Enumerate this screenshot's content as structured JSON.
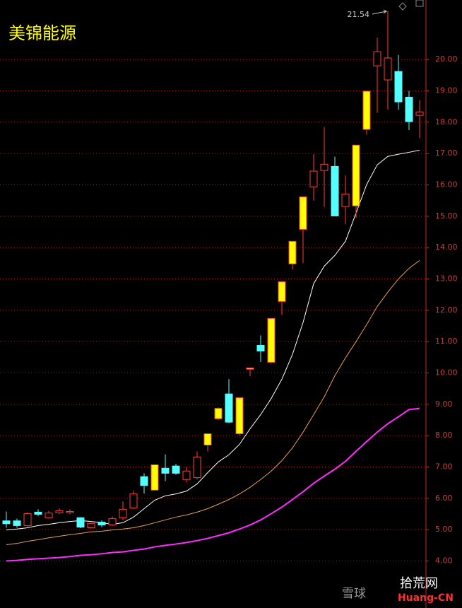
{
  "chart_data": {
    "type": "candlestick",
    "title": "美锦能源",
    "open": [
      5.28,
      5.28,
      5.13,
      5.56,
      5.38,
      5.54,
      5.54,
      5.38,
      5.06,
      5.24,
      5.15,
      5.38,
      5.69,
      6.69,
      6.26,
      6.96,
      7.03,
      6.6,
      6.66,
      7.7,
      8.54,
      9.33,
      8.06,
      10.12,
      10.88,
      10.34,
      12.28,
      13.48,
      14.58,
      15.94,
      16.46,
      16.59,
      15.31,
      15.33,
      17.77,
      19.8,
      19.35,
      19.62,
      18.8,
      18.22
    ],
    "high": [
      5.58,
      5.35,
      5.55,
      5.65,
      5.6,
      5.68,
      5.65,
      5.4,
      5.22,
      5.3,
      5.42,
      5.9,
      6.25,
      6.8,
      7.07,
      7.4,
      7.1,
      7.0,
      7.5,
      8.06,
      8.9,
      9.8,
      9.21,
      10.17,
      11.2,
      11.74,
      12.91,
      14.2,
      15.62,
      16.98,
      17.85,
      16.9,
      16.3,
      17.27,
      18.99,
      20.7,
      21.54,
      20.15,
      19.0,
      18.7
    ],
    "low": [
      5.06,
      5.06,
      5.1,
      5.43,
      5.35,
      5.5,
      5.5,
      5.05,
      5.03,
      5.08,
      5.12,
      5.3,
      5.65,
      6.15,
      6.26,
      6.55,
      6.75,
      6.5,
      6.6,
      7.5,
      8.5,
      8.4,
      8.0,
      9.9,
      10.35,
      10.3,
      11.85,
      13.3,
      13.5,
      15.5,
      15.3,
      15.0,
      14.75,
      14.95,
      17.6,
      18.3,
      18.4,
      18.4,
      17.75,
      17.5
    ],
    "close": [
      5.19,
      5.13,
      5.51,
      5.49,
      5.53,
      5.6,
      5.58,
      5.08,
      5.2,
      5.15,
      5.35,
      5.65,
      6.14,
      6.41,
      7.07,
      6.8,
      6.8,
      6.87,
      7.32,
      8.06,
      8.87,
      8.43,
      9.21,
      10.16,
      10.7,
      11.74,
      12.91,
      14.2,
      15.62,
      16.44,
      16.66,
      15.01,
      15.71,
      17.27,
      18.99,
      20.25,
      20.05,
      18.65,
      18.02,
      18.33
    ],
    "body_fill": [
      "#54ffff",
      "#54ffff",
      "#000000",
      "#54ffff",
      "#000000",
      "#000000",
      "#000000",
      "#54ffff",
      "#000000",
      "#54ffff",
      "#000000",
      "#000000",
      "#000000",
      "#54ffff",
      "#ffff00",
      "#54ffff",
      "#54ffff",
      "#000000",
      "#000000",
      "#ffff00",
      "#ffff00",
      "#54ffff",
      "#ffff00",
      "#ffff00",
      "#54ffff",
      "#ffff00",
      "#ffff00",
      "#ffff00",
      "#ffff00",
      "#000000",
      "#000000",
      "#54ffff",
      "#000000",
      "#ffff00",
      "#ffff00",
      "#000000",
      "#000000",
      "#54ffff",
      "#54ffff",
      "#000000"
    ],
    "up_color": "#ff3c3c",
    "down_color": "#54ffff",
    "lines": [
      {
        "color": "#ffffff",
        "values": [
          4.99,
          5.02,
          5.06,
          5.13,
          5.17,
          5.22,
          5.26,
          5.29,
          5.26,
          5.22,
          5.17,
          5.22,
          5.4,
          5.67,
          5.94,
          6.08,
          6.14,
          6.23,
          6.46,
          6.82,
          7.16,
          7.39,
          7.72,
          8.22,
          8.67,
          9.19,
          9.8,
          10.59,
          11.61,
          12.85,
          13.41,
          13.75,
          14.2,
          15.1,
          16.01,
          16.64,
          16.91,
          16.98,
          17.04,
          17.11
        ]
      },
      {
        "color": "#e8a050",
        "values": [
          4.52,
          4.56,
          4.63,
          4.68,
          4.74,
          4.79,
          4.84,
          4.88,
          4.93,
          4.95,
          4.99,
          5.02,
          5.06,
          5.13,
          5.22,
          5.31,
          5.4,
          5.47,
          5.56,
          5.67,
          5.81,
          5.96,
          6.14,
          6.35,
          6.6,
          6.87,
          7.2,
          7.61,
          8.11,
          8.67,
          9.24,
          9.91,
          10.48,
          11.0,
          11.54,
          12.12,
          12.58,
          13.0,
          13.34,
          13.59
        ]
      },
      {
        "color": "#ff2cff",
        "values": [
          4.0,
          4.02,
          4.05,
          4.07,
          4.09,
          4.11,
          4.14,
          4.18,
          4.2,
          4.23,
          4.27,
          4.29,
          4.34,
          4.38,
          4.45,
          4.5,
          4.54,
          4.59,
          4.65,
          4.72,
          4.81,
          4.9,
          5.02,
          5.15,
          5.31,
          5.51,
          5.72,
          5.96,
          6.21,
          6.48,
          6.71,
          6.93,
          7.18,
          7.5,
          7.81,
          8.11,
          8.38,
          8.6,
          8.83,
          8.87
        ]
      }
    ],
    "ylim": [
      2.5,
      21.9
    ],
    "yticks": [
      {
        "value": 4,
        "label": "4.00"
      },
      {
        "value": 5,
        "label": "5.00"
      },
      {
        "value": 6,
        "label": "6.00"
      },
      {
        "value": 7,
        "label": "7.00"
      },
      {
        "value": 8,
        "label": "8.00"
      },
      {
        "value": 9,
        "label": "9.00"
      },
      {
        "value": 10,
        "label": "10.00"
      },
      {
        "value": 11,
        "label": "11.00"
      },
      {
        "value": 12,
        "label": "12.00"
      },
      {
        "value": 13,
        "label": "13.00"
      },
      {
        "value": 14,
        "label": "14.00"
      },
      {
        "value": 15,
        "label": "15.00"
      },
      {
        "value": 16,
        "label": "16.00"
      },
      {
        "value": 17,
        "label": "17.00"
      },
      {
        "value": 18,
        "label": "18.00"
      },
      {
        "value": 19,
        "label": "19.00"
      },
      {
        "value": 20,
        "label": "20.00"
      }
    ],
    "grid": true,
    "grid_color": "#a02020",
    "axis_color": "#c02828",
    "max_marker_index": 36
  },
  "watermark": {
    "left": "雪球",
    "right": "拾荒网",
    "right_sub": "Huang-CN"
  }
}
